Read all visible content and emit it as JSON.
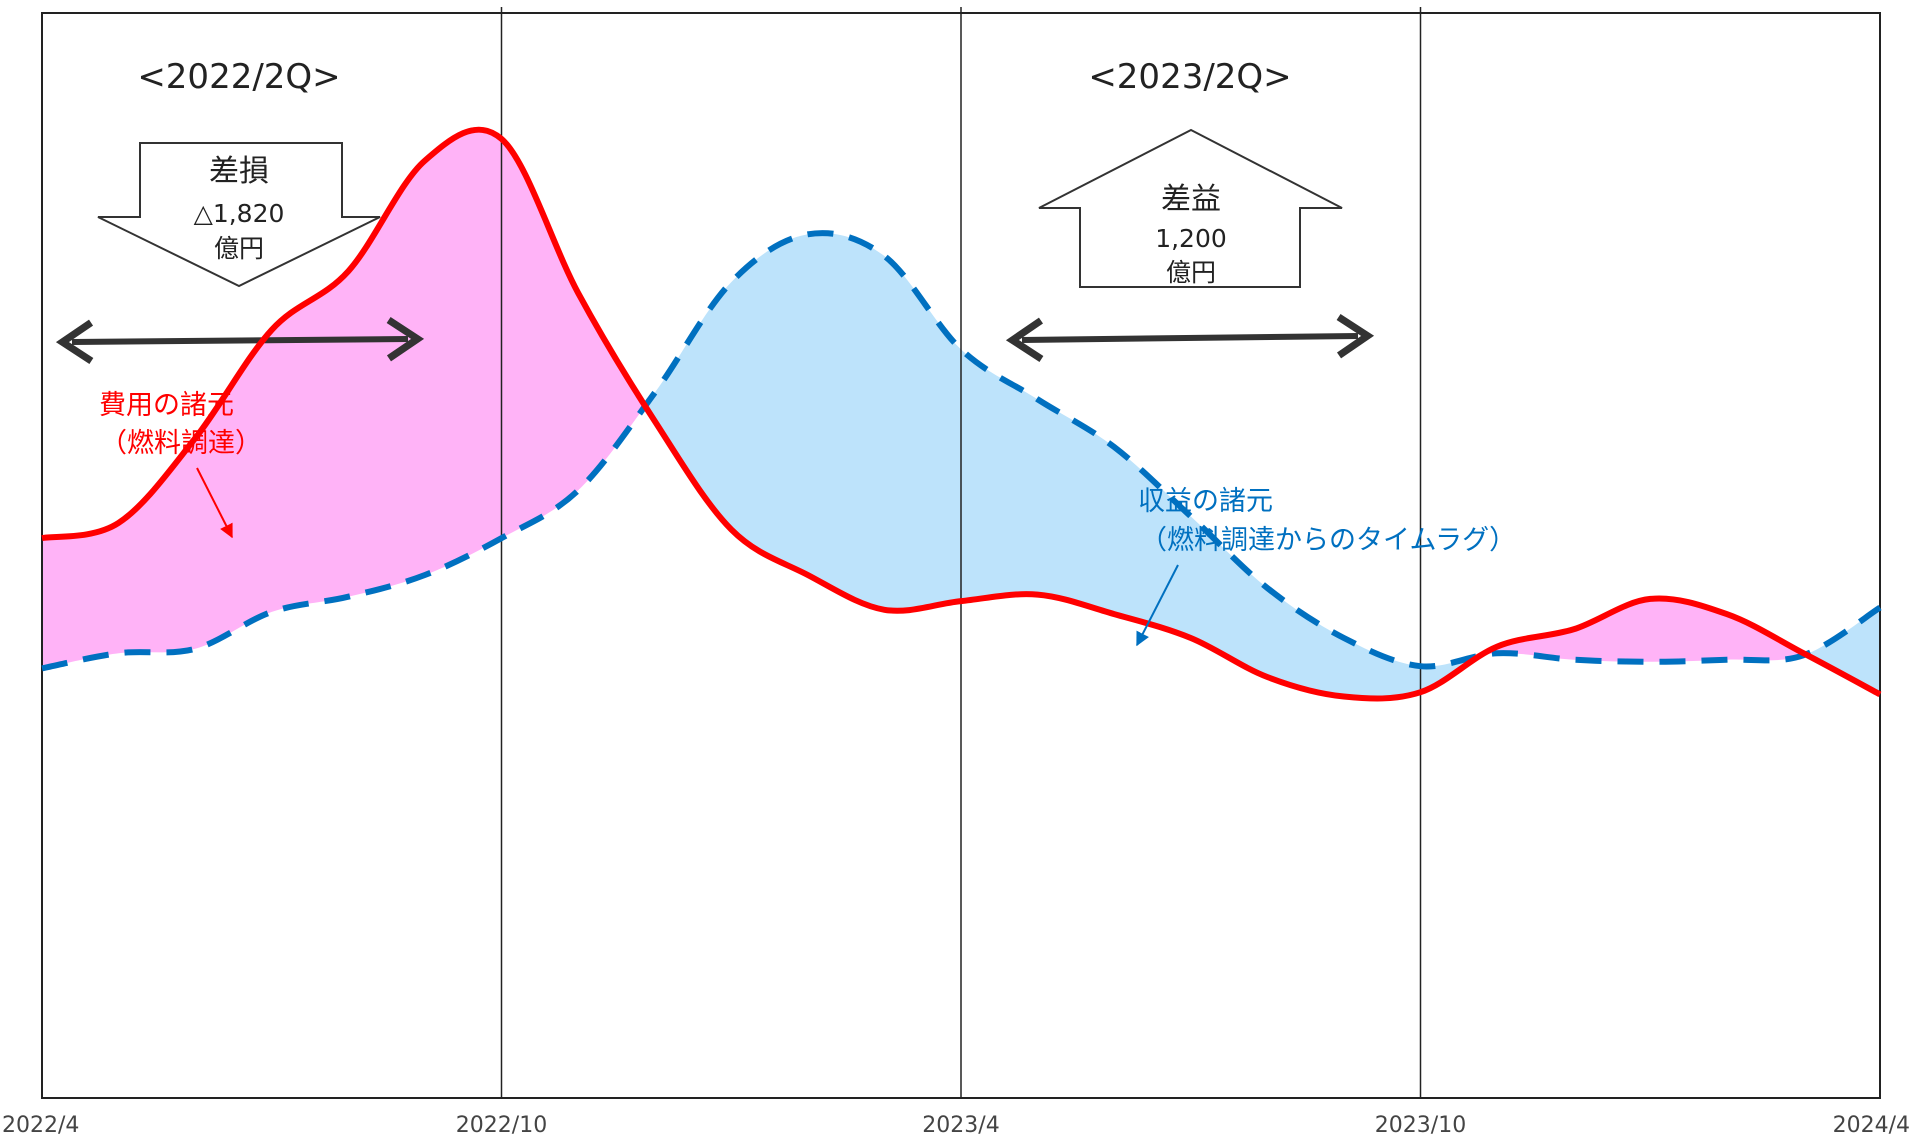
{
  "chart_data": {
    "type": "line",
    "x_ticks": [
      "2022/4",
      "2022/10",
      "2023/4",
      "2023/10",
      "2024/4"
    ],
    "periods": [
      {
        "title": "<2022/2Q>",
        "direction": "down",
        "arrow_title": "差損",
        "arrow_value": "△1,820",
        "arrow_unit": "億円",
        "color": "#ffb3f7"
      },
      {
        "title": "<2023/2Q>",
        "direction": "up",
        "arrow_title": "差益",
        "arrow_value": "1,200",
        "arrow_unit": "億円",
        "color": "#bde3fb"
      }
    ],
    "series": [
      {
        "name": "費用の諸元（燃料調達）",
        "label_lines": [
          "費用の諸元",
          "（燃料調達）"
        ],
        "color": "#ff0000",
        "style": "solid",
        "points": [
          [
            "2022/4",
            58
          ],
          [
            "2022/5",
            65
          ],
          [
            "2022/6",
            104
          ],
          [
            "2022/7",
            154
          ],
          [
            "2022/8",
            181
          ],
          [
            "2022/9",
            232
          ],
          [
            "2022/10",
            242
          ],
          [
            "2022/11",
            171
          ],
          [
            "2022/12",
            112
          ],
          [
            "2023/1",
            62
          ],
          [
            "2023/2",
            41
          ],
          [
            "2023/3",
            25
          ],
          [
            "2023/4",
            29
          ],
          [
            "2023/5",
            32
          ],
          [
            "2023/6",
            23
          ],
          [
            "2023/7",
            12
          ],
          [
            "2023/8",
            -6
          ],
          [
            "2023/9",
            -15
          ],
          [
            "2023/10",
            -13
          ],
          [
            "2023/11",
            8
          ],
          [
            "2023/12",
            16
          ],
          [
            "2024/1",
            30
          ],
          [
            "2024/2",
            23
          ],
          [
            "2024/3",
            5
          ],
          [
            "2024/4",
            -14
          ]
        ]
      },
      {
        "name": "収益の諸元（燃料調達からのタイムラグ）",
        "label_lines": [
          "収益の諸元",
          "（燃料調達からのタイムラグ）"
        ],
        "color": "#0070c0",
        "style": "dashed",
        "points": [
          [
            "2022/4",
            -2
          ],
          [
            "2022/5",
            5
          ],
          [
            "2022/6",
            7
          ],
          [
            "2022/7",
            24
          ],
          [
            "2022/8",
            31
          ],
          [
            "2022/9",
            41
          ],
          [
            "2022/10",
            58
          ],
          [
            "2022/11",
            80
          ],
          [
            "2022/12",
            125
          ],
          [
            "2023/1",
            176
          ],
          [
            "2023/2",
            198
          ],
          [
            "2023/3",
            188
          ],
          [
            "2023/4",
            145
          ],
          [
            "2023/5",
            122
          ],
          [
            "2023/6",
            100
          ],
          [
            "2023/7",
            68
          ],
          [
            "2023/8",
            35
          ],
          [
            "2023/9",
            12
          ],
          [
            "2023/10",
            -1
          ],
          [
            "2023/11",
            5
          ],
          [
            "2023/12",
            2
          ],
          [
            "2024/1",
            1
          ],
          [
            "2024/2",
            2
          ],
          [
            "2024/3",
            4
          ],
          [
            "2024/4",
            26
          ]
        ]
      }
    ],
    "ylim": [
      -200,
      300
    ],
    "legend": "none",
    "grid": false
  }
}
